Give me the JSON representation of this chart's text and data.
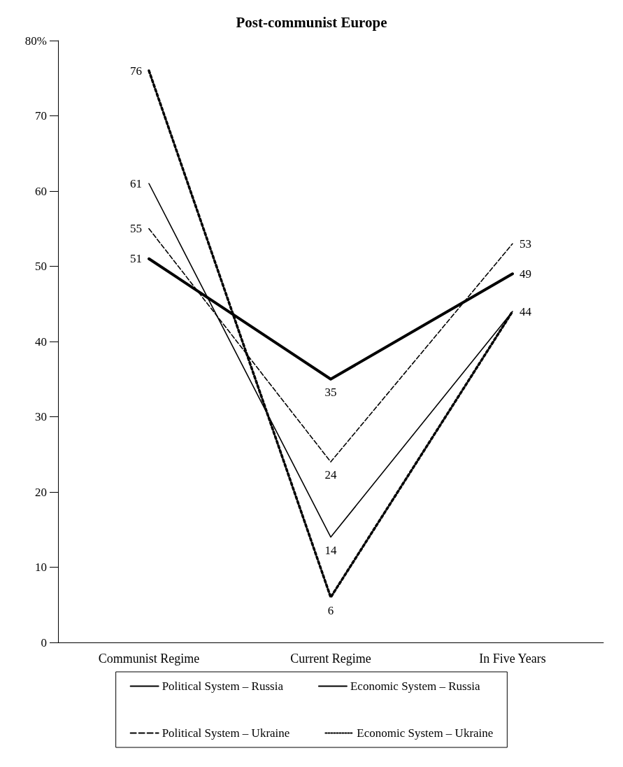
{
  "chart_data": {
    "type": "line",
    "title": "Post-communist Europe",
    "categories": [
      "Communist Regime",
      "Current Regime",
      "In Five Years"
    ],
    "series": [
      {
        "name": "Political System – Russia",
        "color": "#000000",
        "line_style": "solid",
        "values": [
          51,
          35,
          49
        ],
        "value_labels": [
          "51",
          "35",
          "49"
        ]
      },
      {
        "name": "Economic System – Russia",
        "color": "#000000",
        "line_style": "solid",
        "values": [
          61,
          14,
          44
        ],
        "value_labels": [
          "61",
          "14",
          "44"
        ]
      },
      {
        "name": "Political System – Ukraine",
        "color": "#000000",
        "line_style": "dashed",
        "values": [
          55,
          24,
          53
        ],
        "value_labels": [
          "55",
          "24",
          "53"
        ]
      },
      {
        "name": "Economic System – Ukraine",
        "color": "#000000",
        "line_style": "dotted",
        "values": [
          76,
          6,
          44
        ],
        "value_labels": [
          "76",
          "6",
          null
        ]
      }
    ],
    "ylim": [
      0,
      80
    ],
    "yticks": [
      0,
      10,
      20,
      30,
      40,
      50,
      60,
      70,
      {
        "value": 80,
        "label": "80%"
      }
    ],
    "grid": false,
    "legend": "bottom",
    "marker": "none"
  }
}
